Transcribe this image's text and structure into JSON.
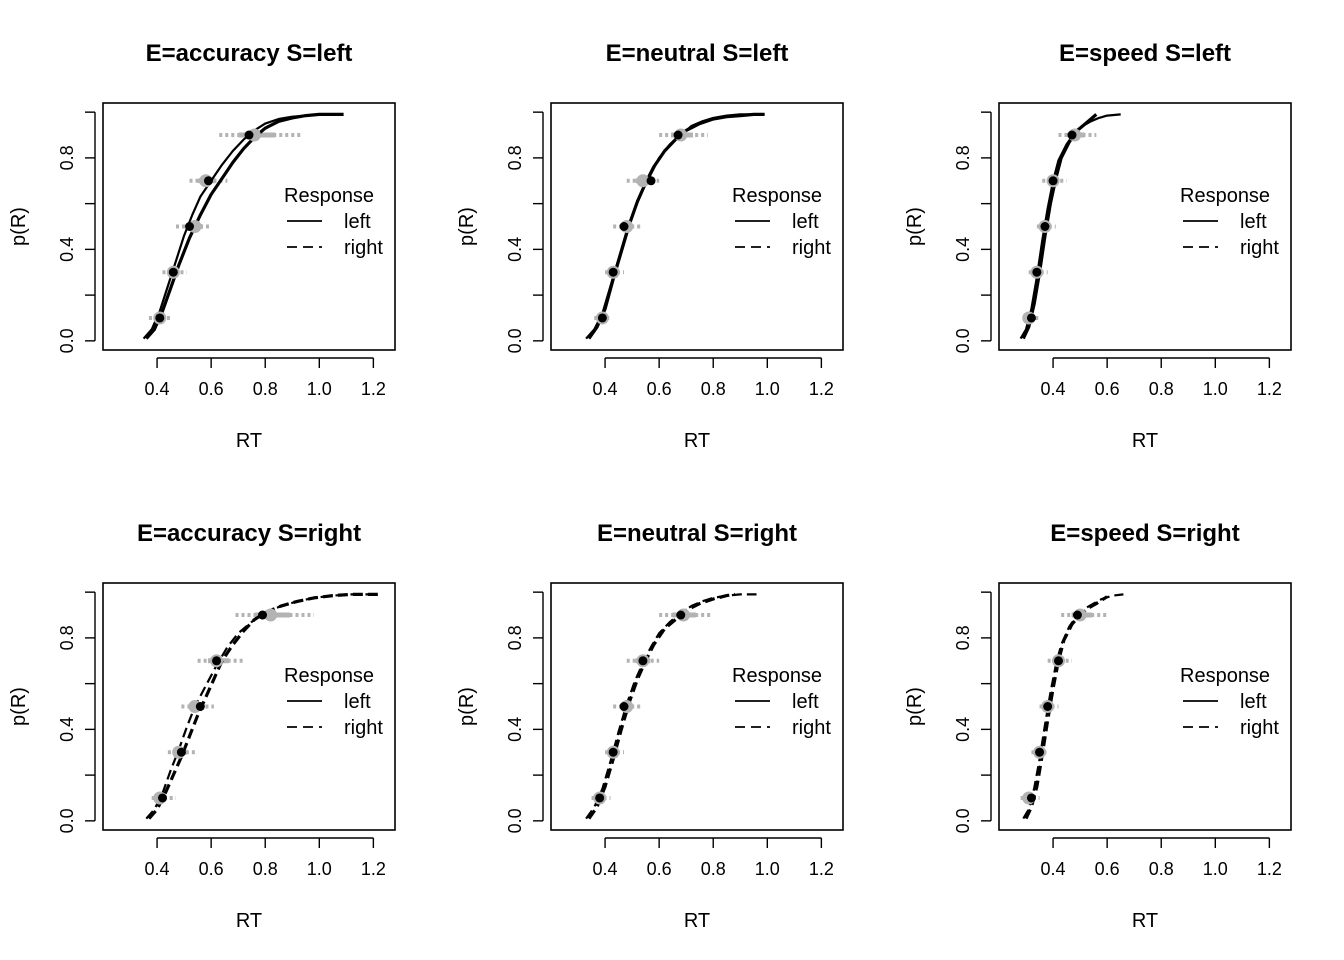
{
  "chart_data": [
    {
      "type": "line",
      "title": "E=accuracy S=left",
      "xlabel": "RT",
      "ylabel": "p(R)",
      "xlim": [
        0.2,
        1.28
      ],
      "ylim": [
        -0.04,
        1.04
      ],
      "x_ticks": [
        "0.4",
        "0.6",
        "0.8",
        "1.0",
        "1.2"
      ],
      "y_ticks": [
        "0.0",
        "0.4",
        "0.8"
      ],
      "legend": {
        "title": "Response",
        "entries": [
          "left",
          "right"
        ],
        "position": "right"
      },
      "series": [
        {
          "name": "left",
          "style": "solid",
          "x": [
            0.35,
            0.38,
            0.41,
            0.44,
            0.47,
            0.5,
            0.53,
            0.56,
            0.6,
            0.64,
            0.68,
            0.72,
            0.76,
            0.8,
            0.85,
            0.9,
            0.95,
            1.0,
            1.04,
            1.08
          ],
          "y": [
            0.01,
            0.05,
            0.13,
            0.24,
            0.35,
            0.46,
            0.55,
            0.63,
            0.7,
            0.77,
            0.83,
            0.88,
            0.92,
            0.95,
            0.97,
            0.98,
            0.985,
            0.99,
            0.99,
            0.99
          ]
        },
        {
          "name": "left",
          "style": "solid",
          "x": [
            0.36,
            0.39,
            0.42,
            0.45,
            0.48,
            0.52,
            0.56,
            0.6,
            0.64,
            0.68,
            0.72,
            0.76,
            0.8,
            0.85,
            0.9,
            0.95,
            1.0,
            1.09
          ],
          "y": [
            0.01,
            0.05,
            0.13,
            0.23,
            0.33,
            0.45,
            0.55,
            0.64,
            0.71,
            0.78,
            0.84,
            0.89,
            0.93,
            0.96,
            0.975,
            0.985,
            0.99,
            0.99
          ]
        }
      ],
      "observed": {
        "x": [
          0.41,
          0.46,
          0.52,
          0.59,
          0.74
        ],
        "y": [
          0.1,
          0.3,
          0.5,
          0.7,
          0.9
        ]
      },
      "predicted": {
        "x": [
          0.41,
          0.46,
          0.54,
          0.58,
          0.76
        ],
        "y": [
          0.1,
          0.3,
          0.5,
          0.7,
          0.9
        ]
      },
      "pred_range": [
        [
          0.37,
          0.45
        ],
        [
          0.42,
          0.51
        ],
        [
          0.47,
          0.6
        ],
        [
          0.52,
          0.66
        ],
        [
          0.63,
          0.93
        ]
      ]
    },
    {
      "type": "line",
      "title": "E=neutral S=left",
      "xlabel": "RT",
      "ylabel": "p(R)",
      "xlim": [
        0.2,
        1.28
      ],
      "ylim": [
        -0.04,
        1.04
      ],
      "x_ticks": [
        "0.4",
        "0.6",
        "0.8",
        "1.0",
        "1.2"
      ],
      "y_ticks": [
        "0.0",
        "0.4",
        "0.8"
      ],
      "legend": {
        "title": "Response",
        "entries": [
          "left",
          "right"
        ],
        "position": "right"
      },
      "series": [
        {
          "name": "left",
          "style": "solid",
          "x": [
            0.33,
            0.36,
            0.39,
            0.42,
            0.45,
            0.48,
            0.51,
            0.54,
            0.57,
            0.6,
            0.64,
            0.68,
            0.72,
            0.76,
            0.8,
            0.85,
            0.9,
            0.95,
            0.99
          ],
          "y": [
            0.01,
            0.05,
            0.12,
            0.24,
            0.36,
            0.48,
            0.58,
            0.66,
            0.73,
            0.8,
            0.86,
            0.9,
            0.94,
            0.96,
            0.975,
            0.985,
            0.99,
            0.99,
            0.99
          ]
        },
        {
          "name": "left",
          "style": "solid",
          "x": [
            0.34,
            0.37,
            0.4,
            0.43,
            0.46,
            0.49,
            0.52,
            0.55,
            0.58,
            0.62,
            0.66,
            0.7,
            0.75,
            0.8,
            0.85,
            0.9,
            0.95,
            0.99
          ],
          "y": [
            0.01,
            0.06,
            0.14,
            0.27,
            0.39,
            0.51,
            0.61,
            0.69,
            0.76,
            0.83,
            0.88,
            0.92,
            0.95,
            0.97,
            0.98,
            0.985,
            0.99,
            0.99
          ]
        }
      ],
      "observed": {
        "x": [
          0.39,
          0.43,
          0.47,
          0.57,
          0.67
        ],
        "y": [
          0.1,
          0.3,
          0.5,
          0.7,
          0.9
        ]
      },
      "predicted": {
        "x": [
          0.39,
          0.43,
          0.48,
          0.54,
          0.68
        ],
        "y": [
          0.1,
          0.3,
          0.5,
          0.7,
          0.9
        ]
      },
      "pred_range": [
        [
          0.36,
          0.42
        ],
        [
          0.4,
          0.47
        ],
        [
          0.43,
          0.53
        ],
        [
          0.48,
          0.6
        ],
        [
          0.6,
          0.78
        ]
      ]
    },
    {
      "type": "line",
      "title": "E=speed S=left",
      "xlabel": "RT",
      "ylabel": "p(R)",
      "xlim": [
        0.2,
        1.28
      ],
      "ylim": [
        -0.04,
        1.04
      ],
      "x_ticks": [
        "0.4",
        "0.6",
        "0.8",
        "1.0",
        "1.2"
      ],
      "y_ticks": [
        "0.0",
        "0.4",
        "0.8"
      ],
      "legend": {
        "title": "Response",
        "entries": [
          "left",
          "right"
        ],
        "position": "right"
      },
      "series": [
        {
          "name": "left",
          "style": "solid",
          "x": [
            0.28,
            0.3,
            0.32,
            0.34,
            0.36,
            0.38,
            0.4,
            0.42,
            0.45,
            0.48,
            0.51,
            0.54,
            0.57,
            0.6,
            0.65
          ],
          "y": [
            0.01,
            0.05,
            0.14,
            0.28,
            0.44,
            0.58,
            0.7,
            0.79,
            0.86,
            0.91,
            0.94,
            0.96,
            0.975,
            0.985,
            0.99
          ]
        },
        {
          "name": "left",
          "style": "solid",
          "x": [
            0.29,
            0.31,
            0.33,
            0.35,
            0.37,
            0.39,
            0.41,
            0.43,
            0.46,
            0.49,
            0.52,
            0.56
          ],
          "y": [
            0.01,
            0.06,
            0.16,
            0.3,
            0.46,
            0.6,
            0.71,
            0.8,
            0.87,
            0.92,
            0.95,
            0.99
          ]
        }
      ],
      "observed": {
        "x": [
          0.32,
          0.34,
          0.37,
          0.4,
          0.47
        ],
        "y": [
          0.1,
          0.3,
          0.5,
          0.7,
          0.9
        ]
      },
      "predicted": {
        "x": [
          0.31,
          0.34,
          0.37,
          0.4,
          0.48
        ],
        "y": [
          0.1,
          0.3,
          0.5,
          0.7,
          0.9
        ]
      },
      "pred_range": [
        [
          0.29,
          0.35
        ],
        [
          0.31,
          0.38
        ],
        [
          0.34,
          0.41
        ],
        [
          0.36,
          0.45
        ],
        [
          0.42,
          0.56
        ]
      ]
    },
    {
      "type": "line",
      "title": "E=accuracy S=right",
      "xlabel": "RT",
      "ylabel": "p(R)",
      "xlim": [
        0.2,
        1.28
      ],
      "ylim": [
        -0.04,
        1.04
      ],
      "x_ticks": [
        "0.4",
        "0.6",
        "0.8",
        "1.0",
        "1.2"
      ],
      "y_ticks": [
        "0.0",
        "0.4",
        "0.8"
      ],
      "legend": {
        "title": "Response",
        "entries": [
          "left",
          "right"
        ],
        "position": "right"
      },
      "series": [
        {
          "name": "right",
          "style": "dashed",
          "x": [
            0.36,
            0.39,
            0.42,
            0.45,
            0.48,
            0.51,
            0.54,
            0.58,
            0.62,
            0.66,
            0.7,
            0.75,
            0.8,
            0.86,
            0.92,
            0.98,
            1.05,
            1.12,
            1.22
          ],
          "y": [
            0.01,
            0.05,
            0.12,
            0.22,
            0.31,
            0.41,
            0.5,
            0.59,
            0.68,
            0.76,
            0.82,
            0.87,
            0.91,
            0.94,
            0.96,
            0.975,
            0.985,
            0.99,
            0.99
          ]
        },
        {
          "name": "right",
          "style": "dashed",
          "x": [
            0.37,
            0.4,
            0.43,
            0.46,
            0.49,
            0.52,
            0.55,
            0.58,
            0.61,
            0.64,
            0.68,
            0.72,
            0.76,
            0.8,
            0.86,
            0.92,
            0.98,
            1.05,
            1.12,
            1.22
          ],
          "y": [
            0.01,
            0.05,
            0.12,
            0.2,
            0.28,
            0.37,
            0.46,
            0.54,
            0.62,
            0.7,
            0.77,
            0.83,
            0.88,
            0.91,
            0.94,
            0.96,
            0.975,
            0.985,
            0.99,
            0.99
          ]
        }
      ],
      "observed": {
        "x": [
          0.42,
          0.49,
          0.56,
          0.62,
          0.79
        ],
        "y": [
          0.1,
          0.3,
          0.5,
          0.7,
          0.9
        ]
      },
      "predicted": {
        "x": [
          0.41,
          0.48,
          0.54,
          0.62,
          0.82
        ],
        "y": [
          0.1,
          0.3,
          0.5,
          0.7,
          0.9
        ]
      },
      "pred_range": [
        [
          0.38,
          0.47
        ],
        [
          0.44,
          0.55
        ],
        [
          0.49,
          0.61
        ],
        [
          0.55,
          0.72
        ],
        [
          0.69,
          0.98
        ]
      ]
    },
    {
      "type": "line",
      "title": "E=neutral S=right",
      "xlabel": "RT",
      "ylabel": "p(R)",
      "xlim": [
        0.2,
        1.28
      ],
      "ylim": [
        -0.04,
        1.04
      ],
      "x_ticks": [
        "0.4",
        "0.6",
        "0.8",
        "1.0",
        "1.2"
      ],
      "y_ticks": [
        "0.0",
        "0.4",
        "0.8"
      ],
      "legend": {
        "title": "Response",
        "entries": [
          "left",
          "right"
        ],
        "position": "right"
      },
      "series": [
        {
          "name": "right",
          "style": "dashed",
          "x": [
            0.33,
            0.36,
            0.39,
            0.42,
            0.45,
            0.48,
            0.51,
            0.54,
            0.57,
            0.6,
            0.64,
            0.68,
            0.72,
            0.76,
            0.8,
            0.85,
            0.9,
            0.96
          ],
          "y": [
            0.01,
            0.06,
            0.14,
            0.26,
            0.39,
            0.51,
            0.61,
            0.69,
            0.76,
            0.82,
            0.87,
            0.91,
            0.94,
            0.96,
            0.975,
            0.985,
            0.99,
            0.99
          ]
        },
        {
          "name": "right",
          "style": "dashed",
          "x": [
            0.34,
            0.37,
            0.4,
            0.43,
            0.46,
            0.49,
            0.52,
            0.55,
            0.58,
            0.62,
            0.66,
            0.7,
            0.75,
            0.8,
            0.85,
            0.88
          ],
          "y": [
            0.01,
            0.06,
            0.15,
            0.27,
            0.4,
            0.52,
            0.62,
            0.7,
            0.77,
            0.84,
            0.88,
            0.92,
            0.95,
            0.97,
            0.985,
            0.99
          ]
        }
      ],
      "observed": {
        "x": [
          0.38,
          0.43,
          0.47,
          0.54,
          0.68
        ],
        "y": [
          0.1,
          0.3,
          0.5,
          0.7,
          0.9
        ]
      },
      "predicted": {
        "x": [
          0.38,
          0.43,
          0.48,
          0.54,
          0.69
        ],
        "y": [
          0.1,
          0.3,
          0.5,
          0.7,
          0.9
        ]
      },
      "pred_range": [
        [
          0.35,
          0.42
        ],
        [
          0.4,
          0.47
        ],
        [
          0.43,
          0.53
        ],
        [
          0.48,
          0.6
        ],
        [
          0.6,
          0.79
        ]
      ]
    },
    {
      "type": "line",
      "title": "E=speed S=right",
      "xlabel": "RT",
      "ylabel": "p(R)",
      "xlim": [
        0.2,
        1.28
      ],
      "ylim": [
        -0.04,
        1.04
      ],
      "x_ticks": [
        "0.4",
        "0.6",
        "0.8",
        "1.0",
        "1.2"
      ],
      "y_ticks": [
        "0.0",
        "0.4",
        "0.8"
      ],
      "legend": {
        "title": "Response",
        "entries": [
          "left",
          "right"
        ],
        "position": "right"
      },
      "series": [
        {
          "name": "right",
          "style": "dashed",
          "x": [
            0.29,
            0.31,
            0.33,
            0.35,
            0.37,
            0.39,
            0.41,
            0.43,
            0.46,
            0.49,
            0.52,
            0.55,
            0.58,
            0.62,
            0.66
          ],
          "y": [
            0.01,
            0.05,
            0.14,
            0.27,
            0.42,
            0.56,
            0.68,
            0.77,
            0.85,
            0.9,
            0.93,
            0.95,
            0.97,
            0.985,
            0.99
          ]
        },
        {
          "name": "right",
          "style": "dashed",
          "x": [
            0.3,
            0.32,
            0.34,
            0.36,
            0.38,
            0.4,
            0.42,
            0.44,
            0.47,
            0.5,
            0.53,
            0.56,
            0.6
          ],
          "y": [
            0.01,
            0.06,
            0.15,
            0.29,
            0.44,
            0.58,
            0.7,
            0.79,
            0.86,
            0.9,
            0.93,
            0.95,
            0.98
          ]
        }
      ],
      "observed": {
        "x": [
          0.32,
          0.35,
          0.38,
          0.42,
          0.49
        ],
        "y": [
          0.1,
          0.3,
          0.5,
          0.7,
          0.9
        ]
      },
      "predicted": {
        "x": [
          0.31,
          0.35,
          0.38,
          0.42,
          0.5
        ],
        "y": [
          0.1,
          0.3,
          0.5,
          0.7,
          0.9
        ]
      },
      "pred_range": [
        [
          0.28,
          0.35
        ],
        [
          0.32,
          0.38
        ],
        [
          0.35,
          0.42
        ],
        [
          0.38,
          0.47
        ],
        [
          0.43,
          0.6
        ]
      ]
    }
  ]
}
